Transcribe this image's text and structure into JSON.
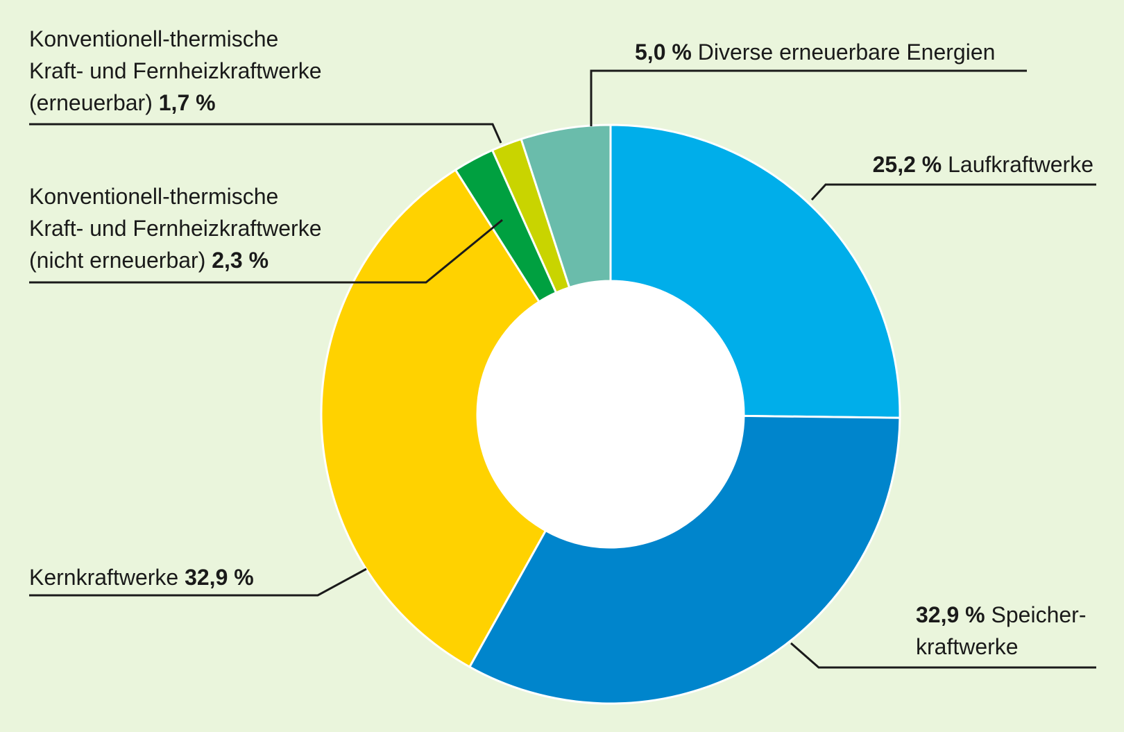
{
  "chart_data": {
    "type": "pie",
    "donut": true,
    "start": "12 o'clock, clockwise",
    "categories": [
      "Laufkraftwerke",
      "Speicherkraftwerke",
      "Kernkraftwerke",
      "Konventionell-thermische Kraft- und Fernheizkraftwerke (nicht erneuerbar)",
      "Konventionell-thermische Kraft- und Fernheizkraftwerke (erneuerbar)",
      "Diverse erneuerbare Energien"
    ],
    "values": [
      25.2,
      32.9,
      32.9,
      2.3,
      1.7,
      5.0
    ],
    "unit": "%",
    "colors": [
      "#00aeea",
      "#0085cc",
      "#ffd200",
      "#00a040",
      "#c9d400",
      "#6abcab"
    ],
    "legend": "none (callout labels with leader lines)",
    "labels": {
      "lauf": {
        "value": "25,2 %",
        "text": "Laufkraftwerke"
      },
      "speicher": {
        "value": "32,9 %",
        "line1": "Speicher-",
        "line2": "kraftwerke"
      },
      "kern": {
        "text": "Kernkraftwerke",
        "value": "32,9 %"
      },
      "nicht": {
        "line1": "Konventionell-thermische",
        "line2": "Kraft- und Fernheizkraftwerke",
        "line3": "(nicht erneuerbar)",
        "value": "2,3 %"
      },
      "ern": {
        "line1": "Konventionell-thermische",
        "line2": "Kraft- und Fernheizkraftwerke",
        "line3": "(erneuerbar)",
        "value": "1,7 %"
      },
      "div": {
        "value": "5,0 %",
        "text": "Diverse erneuerbare Energien"
      }
    }
  }
}
